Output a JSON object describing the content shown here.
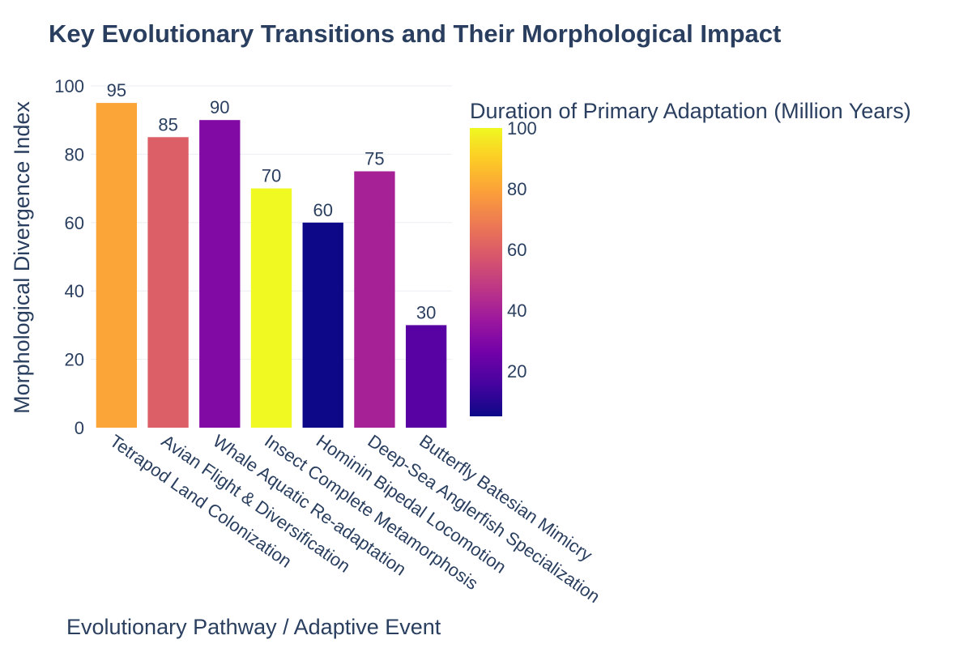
{
  "chart_data": {
    "type": "bar",
    "title": "Key Evolutionary Transitions and Their Morphological Impact",
    "xlabel": "Evolutionary Pathway / Adaptive Event",
    "ylabel": "Morphological Divergence Index",
    "ylim": [
      0,
      100
    ],
    "yticks": [
      0,
      20,
      40,
      60,
      80,
      100
    ],
    "grid": true,
    "categories": [
      "Tetrapod Land Colonization",
      "Avian Flight & Diversification",
      "Whale Aquatic Re-adaptation",
      "Insect Complete Metamorphosis",
      "Hominin Bipedal Locomotion",
      "Deep-Sea Anglerfish Specialization",
      "Butterfly Batesian Mimicry"
    ],
    "values": [
      95,
      85,
      90,
      70,
      60,
      75,
      30
    ],
    "data_labels": [
      "95",
      "85",
      "90",
      "70",
      "60",
      "75",
      "30"
    ],
    "color_values": [
      80,
      60,
      30,
      100,
      5,
      40,
      20
    ],
    "colorbar": {
      "title": "Duration of Primary Adaptation (Million Years)",
      "range": [
        5,
        100
      ],
      "ticks": [
        20,
        40,
        60,
        80,
        100
      ],
      "colorscale": [
        "#0d0887",
        "#46039f",
        "#7201a8",
        "#9c179e",
        "#bd3786",
        "#d8576b",
        "#ed7953",
        "#fb9f3a",
        "#fdca26",
        "#f0f921"
      ]
    }
  }
}
